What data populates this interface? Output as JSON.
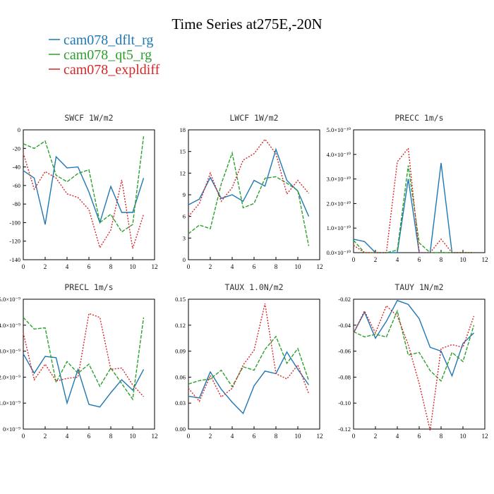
{
  "title": "Time Series at275E,-20N",
  "colors": {
    "dflt": "#1f77b4",
    "qt5": "#2ca02c",
    "expl": "#d62728",
    "axis": "#000000"
  },
  "legend": [
    {
      "label": "cam078_dflt_rg",
      "color": "#1f77b4"
    },
    {
      "label": "cam078_qt5_rg",
      "color": "#2ca02c"
    },
    {
      "label": "cam078_expldiff",
      "color": "#d62728"
    }
  ],
  "chart_data": [
    {
      "type": "line",
      "title": "SWCF   1W/m2",
      "x": [
        0,
        1,
        2,
        3,
        4,
        5,
        6,
        7,
        8,
        9,
        10,
        11
      ],
      "xlim": [
        0,
        12
      ],
      "ylim": [
        -140,
        0
      ],
      "xticks": [
        0,
        2,
        4,
        6,
        8,
        10,
        12
      ],
      "yticks": [
        0,
        -20,
        -40,
        -60,
        -80,
        -100,
        -120,
        -140
      ],
      "ytick_labels": [
        "0",
        "-20",
        "-40",
        "-60",
        "-80",
        "-100",
        "-120",
        "-140"
      ],
      "series": [
        {
          "name": "cam078_dflt_rg",
          "values": [
            -44,
            -52,
            -102,
            -29,
            -41,
            -40,
            -67,
            -100,
            -61,
            -89,
            -89,
            -52
          ]
        },
        {
          "name": "cam078_qt5_rg",
          "values": [
            -15,
            -20,
            -12,
            -49,
            -56,
            -47,
            -43,
            -100,
            -91,
            -110,
            -102,
            -7
          ]
        },
        {
          "name": "cam078_expldiff",
          "values": [
            -25,
            -64,
            -45,
            -52,
            -69,
            -73,
            -86,
            -127,
            -108,
            -54,
            -128,
            -91
          ]
        }
      ]
    },
    {
      "type": "line",
      "title": "LWCF   1W/m2",
      "x": [
        0,
        1,
        2,
        3,
        4,
        5,
        6,
        7,
        8,
        9,
        10,
        11
      ],
      "xlim": [
        0,
        12
      ],
      "ylim": [
        0,
        18
      ],
      "xticks": [
        0,
        2,
        4,
        6,
        8,
        10,
        12
      ],
      "yticks": [
        0,
        3,
        6,
        9,
        12,
        15,
        18
      ],
      "ytick_labels": [
        "0",
        "3",
        "6",
        "9",
        "12",
        "15",
        "18"
      ],
      "series": [
        {
          "name": "cam078_dflt_rg",
          "values": [
            7.6,
            8.4,
            11.4,
            8.5,
            9.0,
            8.1,
            11.0,
            10.2,
            15.3,
            11.0,
            9.5,
            6.0
          ]
        },
        {
          "name": "cam078_qt5_rg",
          "values": [
            3.6,
            4.8,
            4.3,
            10.5,
            14.8,
            7.2,
            7.8,
            11.3,
            11.5,
            10.6,
            9.6,
            1.9
          ]
        },
        {
          "name": "cam078_expldiff",
          "values": [
            6.0,
            7.8,
            12.0,
            8.1,
            10.0,
            13.8,
            14.7,
            16.7,
            14.7,
            9.1,
            11.0,
            9.2
          ]
        }
      ]
    },
    {
      "type": "line",
      "title": "PRECC   1m/s",
      "x": [
        0,
        1,
        2,
        3,
        4,
        5,
        6,
        7,
        8,
        9,
        10,
        11
      ],
      "xlim": [
        0,
        12
      ],
      "ylim": [
        0,
        5e-10
      ],
      "xticks": [
        0,
        2,
        4,
        6,
        8,
        10,
        12
      ],
      "yticks": [
        0,
        1e-10,
        2e-10,
        3e-10,
        4e-10,
        5e-10
      ],
      "ytick_labels": [
        "0.0×10⁻¹⁰",
        "1.0×10⁻¹⁰",
        "2.0×10⁻¹⁰",
        "3.0×10⁻¹⁰",
        "4.0×10⁻¹⁰",
        "5.0×10⁻¹⁰"
      ],
      "series": [
        {
          "name": "cam078_dflt_rg",
          "values": [
            5.5e-11,
            4.5e-11,
            0,
            0,
            0,
            3e-10,
            0,
            0,
            3.65e-10,
            0,
            0,
            0
          ]
        },
        {
          "name": "cam078_qt5_rg",
          "values": [
            5e-11,
            0,
            0,
            0,
            1e-11,
            3.55e-10,
            4e-11,
            0,
            0,
            0,
            0,
            0
          ]
        },
        {
          "name": "cam078_expldiff",
          "values": [
            3e-11,
            0,
            0,
            0,
            3.7e-10,
            4.25e-10,
            0,
            0,
            5.5e-11,
            0,
            0,
            0
          ]
        }
      ]
    },
    {
      "type": "line",
      "title": "PRECL   1m/s",
      "x": [
        0,
        1,
        2,
        3,
        4,
        5,
        6,
        7,
        8,
        9,
        10,
        11
      ],
      "xlim": [
        0,
        12
      ],
      "ylim": [
        0.0,
        5.0
      ],
      "xticks": [
        0,
        2,
        4,
        6,
        8,
        10,
        12
      ],
      "yticks": [
        0.0,
        1.0,
        2.0,
        3.0,
        4.0,
        5.0
      ],
      "ytick_labels": [
        "0×10⁻⁹",
        "1.0×10⁻⁹",
        "2.0×10⁻⁹",
        "3.0×10⁻⁹",
        "4.0×10⁻⁹",
        "5.0×10⁻⁹"
      ],
      "series": [
        {
          "name": "cam078_dflt_rg",
          "values": [
            2.9,
            2.15,
            2.8,
            2.75,
            1.0,
            2.3,
            0.95,
            0.85,
            1.4,
            1.9,
            1.5,
            2.3
          ]
        },
        {
          "name": "cam078_qt5_rg",
          "values": [
            4.3,
            3.85,
            3.9,
            1.8,
            2.6,
            2.15,
            2.5,
            1.65,
            2.35,
            1.75,
            1.15,
            4.3
          ]
        },
        {
          "name": "cam078_expldiff",
          "values": [
            3.7,
            1.9,
            2.5,
            1.85,
            1.95,
            2.0,
            4.45,
            4.3,
            2.3,
            2.35,
            1.7,
            1.25
          ]
        }
      ]
    },
    {
      "type": "line",
      "title": "TAUX   1.0N/m2",
      "x": [
        0,
        1,
        2,
        3,
        4,
        5,
        6,
        7,
        8,
        9,
        10,
        11
      ],
      "xlim": [
        0,
        12
      ],
      "ylim": [
        0,
        0.15
      ],
      "xticks": [
        0,
        2,
        4,
        6,
        8,
        10,
        12
      ],
      "yticks": [
        0,
        0.03,
        0.06,
        0.09,
        0.12,
        0.15
      ],
      "ytick_labels": [
        "0.00",
        "0.03",
        "0.06",
        "0.09",
        "0.12",
        "0.15"
      ],
      "series": [
        {
          "name": "cam078_dflt_rg",
          "values": [
            0.038,
            0.036,
            0.066,
            0.046,
            0.031,
            0.018,
            0.05,
            0.067,
            0.064,
            0.089,
            0.069,
            0.051
          ]
        },
        {
          "name": "cam078_qt5_rg",
          "values": [
            0.052,
            0.056,
            0.058,
            0.068,
            0.049,
            0.072,
            0.068,
            0.092,
            0.107,
            0.076,
            0.093,
            0.056
          ]
        },
        {
          "name": "cam078_expldiff",
          "values": [
            0.047,
            0.032,
            0.062,
            0.037,
            0.047,
            0.074,
            0.091,
            0.145,
            0.064,
            0.058,
            0.074,
            0.041
          ]
        }
      ]
    },
    {
      "type": "line",
      "title": "TAUY   1N/m2",
      "x": [
        0,
        1,
        2,
        3,
        4,
        5,
        6,
        7,
        8,
        9,
        10,
        11
      ],
      "xlim": [
        0,
        12
      ],
      "ylim": [
        -0.12,
        -0.02
      ],
      "xticks": [
        0,
        2,
        4,
        6,
        8,
        10,
        12
      ],
      "yticks": [
        -0.02,
        -0.04,
        -0.06,
        -0.08,
        -0.1,
        -0.12
      ],
      "ytick_labels": [
        "-0.02",
        "-0.04",
        "-0.06",
        "-0.08",
        "-0.10",
        "-0.12"
      ],
      "series": [
        {
          "name": "cam078_dflt_rg",
          "values": [
            -0.046,
            -0.03,
            -0.05,
            -0.037,
            -0.021,
            -0.024,
            -0.035,
            -0.057,
            -0.06,
            -0.079,
            -0.054,
            -0.046
          ]
        },
        {
          "name": "cam078_qt5_rg",
          "values": [
            -0.045,
            -0.049,
            -0.047,
            -0.049,
            -0.029,
            -0.063,
            -0.061,
            -0.075,
            -0.083,
            -0.061,
            -0.068,
            -0.04
          ]
        },
        {
          "name": "cam078_expldiff",
          "values": [
            -0.046,
            -0.029,
            -0.046,
            -0.025,
            -0.033,
            -0.055,
            -0.085,
            -0.121,
            -0.058,
            -0.055,
            -0.057,
            -0.033
          ]
        }
      ]
    }
  ]
}
